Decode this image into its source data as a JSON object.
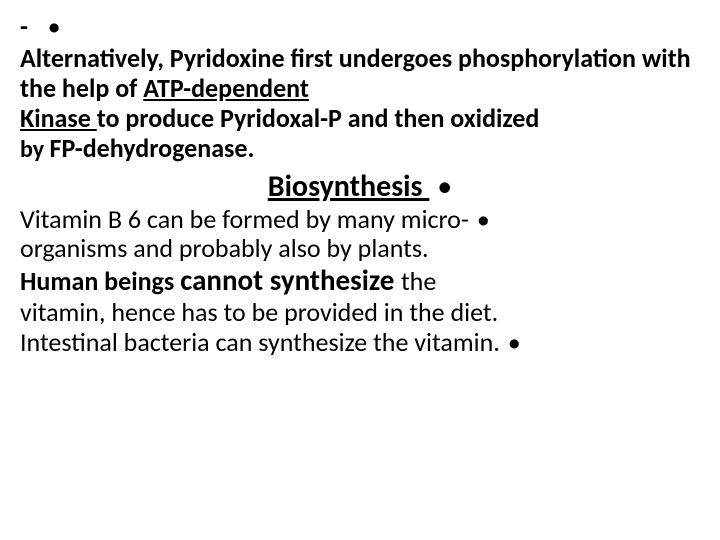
{
  "colors": {
    "bg": "#ffffff",
    "text": "#000000"
  },
  "typography": {
    "body_fontsize_pt": 20,
    "heading_fontsize_pt": 22,
    "font_family": "Calibri",
    "body_weight": "bold"
  },
  "bullets": {
    "dash": "-",
    "dot": "•"
  },
  "para1": {
    "t1": "Alternatively, Pyridoxine first undergoes phosphorylation with the help of ",
    "atp": "ATP-dependent ",
    "kinase": " Kinase ",
    "t2": "to produce Pyridoxal-P and then ",
    "ox": "oxidized",
    "by": "by ",
    "fp": "FP-dehydrogenase."
  },
  "heading": "Biosynthesis ",
  "para2": {
    "l1a": " Vitamin B 6 can be formed by many micro-",
    "l2": "organisms and probably also by plants.",
    "l3a": "Human beings ",
    "l3b": "cannot synthesize ",
    "l3c": "the",
    "l4": "vitamin, hence has to be provided in the diet.",
    "l5": "Intestinal bacteria can synthesize the vitamin."
  }
}
